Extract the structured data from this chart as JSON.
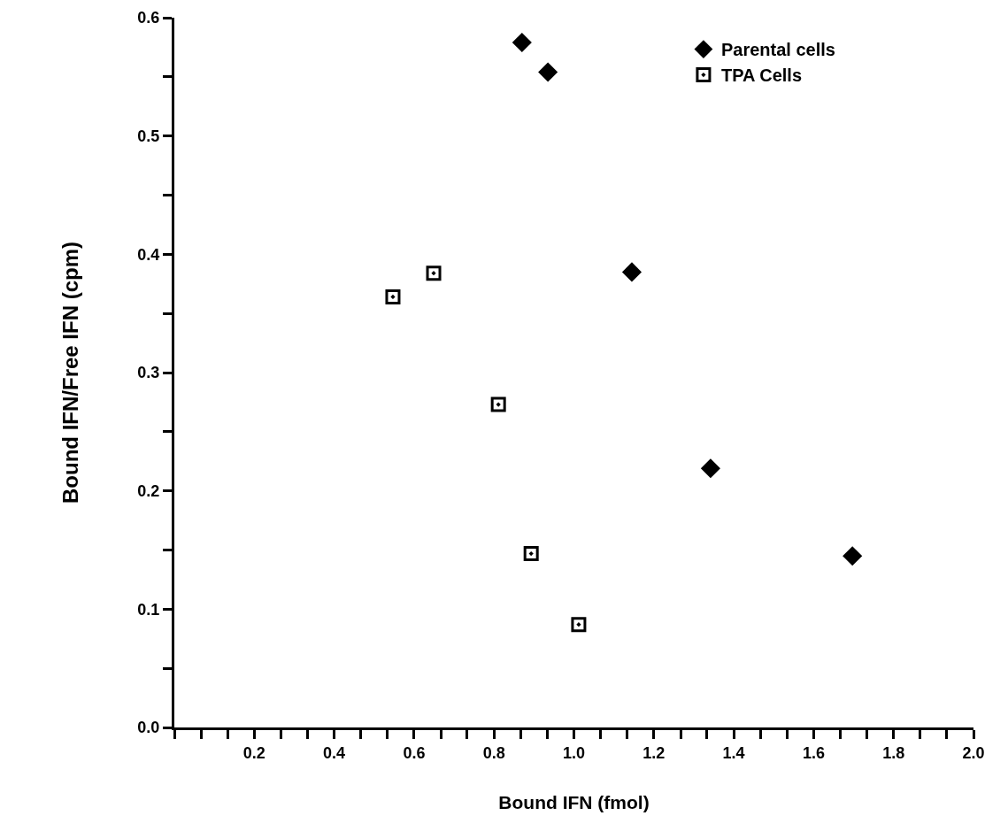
{
  "chart_data": {
    "type": "scatter",
    "xlabel": "Bound IFN (fmol)",
    "ylabel": "Bound IFN/Free IFN (cpm)",
    "series": [
      {
        "name": "Parental cells",
        "color": "#000000",
        "marker": "diamond",
        "x": [
          0.87,
          0.935,
          1.145,
          1.342,
          1.697
        ],
        "values": [
          0.579,
          0.554,
          0.385,
          0.219,
          0.145
        ]
      },
      {
        "name": "TPA Cells",
        "color": "#000000",
        "marker": "square",
        "x": [
          0.547,
          0.649,
          0.811,
          0.893,
          1.012
        ],
        "values": [
          0.364,
          0.384,
          0.273,
          0.147,
          0.087
        ]
      }
    ],
    "xlim": [
      0,
      2.0
    ],
    "xticks": [
      {
        "value": 0,
        "label": null
      },
      {
        "value": 0.067,
        "label": null
      },
      {
        "value": 0.133,
        "label": null
      },
      {
        "value": 0.2,
        "label": "0.2"
      },
      {
        "value": 0.267,
        "label": null
      },
      {
        "value": 0.333,
        "label": null
      },
      {
        "value": 0.4,
        "label": "0.4"
      },
      {
        "value": 0.467,
        "label": null
      },
      {
        "value": 0.533,
        "label": null
      },
      {
        "value": 0.6,
        "label": "0.6"
      },
      {
        "value": 0.667,
        "label": null
      },
      {
        "value": 0.733,
        "label": null
      },
      {
        "value": 0.8,
        "label": "0.8"
      },
      {
        "value": 0.867,
        "label": null
      },
      {
        "value": 0.933,
        "label": null
      },
      {
        "value": 1.0,
        "label": "1.0"
      },
      {
        "value": 1.067,
        "label": null
      },
      {
        "value": 1.133,
        "label": null
      },
      {
        "value": 1.2,
        "label": "1.2"
      },
      {
        "value": 1.267,
        "label": null
      },
      {
        "value": 1.333,
        "label": null
      },
      {
        "value": 1.4,
        "label": "1.4"
      },
      {
        "value": 1.467,
        "label": null
      },
      {
        "value": 1.533,
        "label": null
      },
      {
        "value": 1.6,
        "label": "1.6"
      },
      {
        "value": 1.667,
        "label": null
      },
      {
        "value": 1.733,
        "label": null
      },
      {
        "value": 1.8,
        "label": "1.8"
      },
      {
        "value": 1.867,
        "label": null
      },
      {
        "value": 1.933,
        "label": null
      },
      {
        "value": 2.0,
        "label": "2.0"
      }
    ],
    "ylim": [
      0,
      0.6
    ],
    "yticks": [
      {
        "value": 0,
        "label": "0.0"
      },
      {
        "value": 0.05,
        "label": null
      },
      {
        "value": 0.1,
        "label": "0.1"
      },
      {
        "value": 0.15,
        "label": null
      },
      {
        "value": 0.2,
        "label": "0.2"
      },
      {
        "value": 0.25,
        "label": null
      },
      {
        "value": 0.3,
        "label": "0.3"
      },
      {
        "value": 0.35,
        "label": null
      },
      {
        "value": 0.4,
        "label": "0.4"
      },
      {
        "value": 0.45,
        "label": null
      },
      {
        "value": 0.5,
        "label": "0.5"
      },
      {
        "value": 0.55,
        "label": null
      },
      {
        "value": 0.6,
        "label": "0.6"
      }
    ],
    "grid": false,
    "legend": "top right"
  }
}
